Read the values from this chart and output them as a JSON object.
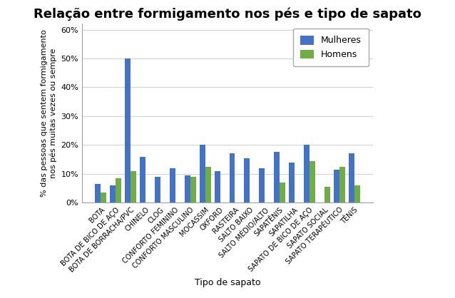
{
  "title": "Relação entre formigamento nos pés e tipo de sapato",
  "xlabel": "Tipo de sapato",
  "ylabel": "% das pessoas que sentem formigamento\nnos pés muitas vezes ou sempre",
  "categories": [
    "BOTA",
    "BOTA DE BICO DE AÇO",
    "BOTA DE BORRACHA/PVC",
    "CHINELO",
    "CLOG",
    "CONFORTO FEMININO",
    "CONFORTO MASCULINO",
    "MOCASSIM",
    "OXFORD",
    "RASTEIRA",
    "SALTO BAIXO",
    "SALTO MÉDIO/ALTO",
    "SAPATÊNIS",
    "SAPATILHA",
    "SAPATO DE BICO DE AÇO",
    "SAPATO SOCIAL",
    "SAPATO TERAPÊUTICO",
    "TÊNIS"
  ],
  "mulheres": [
    6.5,
    6.0,
    50.0,
    16.0,
    9.0,
    12.0,
    9.5,
    20.0,
    11.0,
    17.0,
    15.5,
    12.0,
    17.5,
    14.0,
    20.0,
    0.0,
    11.5,
    17.0
  ],
  "homens": [
    3.5,
    8.5,
    11.0,
    0.0,
    0.0,
    0.0,
    9.0,
    12.5,
    0.0,
    0.0,
    0.0,
    0.0,
    7.0,
    0.0,
    14.5,
    5.5,
    12.5,
    6.0
  ],
  "color_mulheres": "#4472C4",
  "color_homens": "#70AD47",
  "ylim_max": 62,
  "yticks": [
    0,
    10,
    20,
    30,
    40,
    50,
    60
  ],
  "background_color": "#FFFFFF",
  "title_fontsize": 13,
  "axis_label_fontsize": 9,
  "tick_fontsize": 8,
  "legend_labels": [
    "Mulheres",
    "Homens"
  ],
  "bar_width": 0.38
}
